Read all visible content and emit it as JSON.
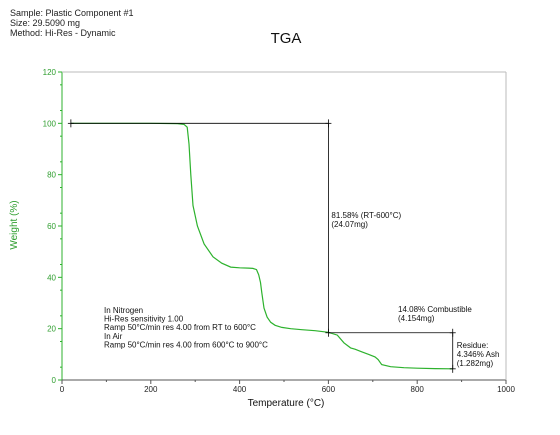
{
  "header": {
    "sample": "Sample:  Plastic Component #1",
    "size": "Size:  29.5090 mg",
    "method": "Method: Hi-Res - Dynamic"
  },
  "chart_data": {
    "type": "line",
    "title": "TGA",
    "xlabel": "Temperature (°C)",
    "ylabel": "Weight (%)",
    "xlim": [
      0,
      1000
    ],
    "ylim": [
      0,
      120
    ],
    "xticks": [
      0,
      200,
      400,
      600,
      800,
      1000
    ],
    "yticks": [
      0,
      20,
      40,
      60,
      80,
      100,
      120
    ],
    "grid": false,
    "colors": {
      "curve": "#2db22d",
      "axis_labels": "#2f9e2f",
      "markers": "#000000"
    },
    "series": [
      {
        "x": [
          20,
          100,
          200,
          260,
          275,
          282,
          286,
          290,
          295,
          305,
          320,
          340,
          360,
          380,
          400,
          420,
          430,
          438,
          443,
          447,
          450,
          455,
          462,
          470,
          480,
          495,
          515,
          540,
          570,
          600,
          620,
          635,
          650,
          660,
          675,
          690,
          705,
          712,
          720,
          740,
          770,
          800,
          840,
          880
        ],
        "y": [
          100,
          100,
          100,
          99.9,
          99.6,
          98.5,
          92,
          80,
          68,
          60,
          53,
          48,
          45.5,
          44,
          43.7,
          43.6,
          43.5,
          43,
          41,
          38,
          34,
          28,
          24.5,
          22.5,
          21.3,
          20.5,
          20,
          19.6,
          19.2,
          18.6,
          17.5,
          14.5,
          12.5,
          12,
          11,
          10,
          9,
          8,
          6,
          5.2,
          4.8,
          4.6,
          4.45,
          4.35
        ]
      }
    ],
    "markers": {
      "start": {
        "x": 20,
        "y": 100
      },
      "step1": {
        "x": 600,
        "y": 18.4
      },
      "step2": {
        "x": 880,
        "y": 4.35
      }
    },
    "annotations": {
      "step1": [
        "81.58% (RT-600°C)",
        "(24.07mg)"
      ],
      "step2": [
        "14.08% Combustible",
        "(4.154mg)"
      ],
      "residue": [
        "Residue:",
        "4.346% Ash",
        "(1.282mg)"
      ],
      "conditions": [
        "In Nitrogen",
        "Hi-Res sensitivity 1.00",
        "Ramp 50°C/min res 4.00 from RT to 600°C",
        "In Air",
        "Ramp 50°C/min res 4.00 from 600°C to 900°C"
      ]
    }
  }
}
